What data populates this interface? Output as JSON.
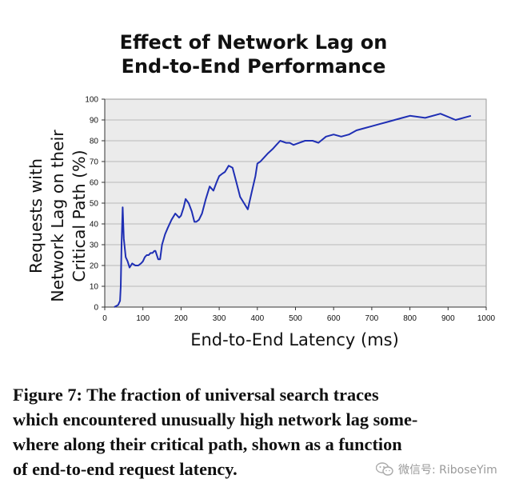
{
  "chart_title_lines": [
    "Effect of Network Lag on",
    "End-to-End Performance"
  ],
  "chart_data": {
    "type": "line",
    "title": "Effect of Network Lag on End-to-End Performance",
    "xlabel": "End-to-End Latency (ms)",
    "ylabel_lines": [
      "Requests with",
      "Network Lag on their",
      "Critical Path (%)"
    ],
    "xlim": [
      0,
      1000
    ],
    "ylim": [
      0,
      100
    ],
    "xticks": [
      0,
      100,
      200,
      300,
      400,
      500,
      600,
      700,
      800,
      900,
      1000
    ],
    "yticks": [
      0,
      10,
      20,
      30,
      40,
      50,
      60,
      70,
      80,
      90,
      100
    ],
    "grid": "horizontal",
    "line_color": "#1f2fb4",
    "plot_background": "#ebebeb",
    "series": [
      {
        "x": [
          25,
          35,
          40,
          42,
          44,
          47,
          50,
          55,
          60,
          65,
          72,
          80,
          88,
          95,
          100,
          105,
          110,
          115,
          120,
          125,
          130,
          133,
          140,
          145,
          150,
          158,
          165,
          175,
          185,
          195,
          200,
          207,
          212,
          220,
          228,
          235,
          240,
          247,
          255,
          265,
          275,
          285,
          293,
          300,
          307,
          315,
          325,
          335,
          345,
          355,
          365,
          375,
          385,
          395,
          400,
          408,
          418,
          428,
          440,
          450,
          460,
          475,
          485,
          495,
          510,
          525,
          545,
          560,
          580,
          600,
          620,
          640,
          660,
          680,
          700,
          720,
          740,
          760,
          780,
          800,
          840,
          880,
          920,
          960
        ],
        "y": [
          0,
          1,
          3,
          10,
          30,
          48,
          33,
          24,
          22,
          19,
          21,
          20,
          20,
          21,
          22,
          24,
          25,
          25,
          26,
          26,
          27,
          27,
          23,
          23,
          30,
          35,
          38,
          42,
          45,
          43,
          44,
          48,
          52,
          50,
          46,
          41,
          41,
          42,
          45,
          52,
          58,
          56,
          60,
          63,
          64,
          65,
          68,
          67,
          60,
          53,
          50,
          47,
          55,
          63,
          69,
          70,
          72,
          74,
          76,
          78,
          80,
          79,
          79,
          78,
          79,
          80,
          80,
          79,
          82,
          83,
          82,
          83,
          85,
          86,
          87,
          88,
          89,
          90,
          91,
          92,
          91,
          93,
          90,
          92
        ]
      }
    ]
  },
  "caption_lines": [
    "Figure 7:  The fraction of universal search traces",
    "which encountered unusually high network lag some-",
    "where along their critical path, shown as a function",
    "of end-to-end request latency."
  ],
  "watermark_text": "微信号: RiboseYim",
  "watermark_icon": "wechat-icon"
}
